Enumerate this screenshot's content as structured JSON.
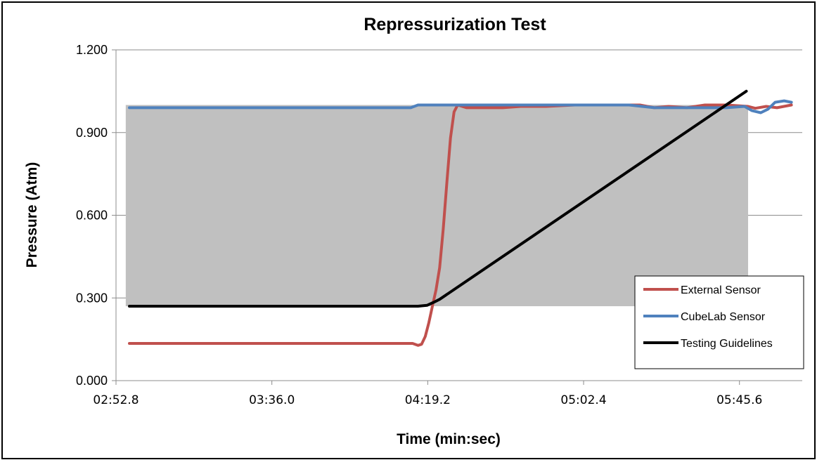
{
  "chart_data": {
    "type": "line",
    "title": "Repressurization Test",
    "xlabel": "Time (min:sec)",
    "ylabel": "Pressure (Atm)",
    "x_unit": "seconds",
    "xlim": [
      172.8,
      363
    ],
    "ylim": [
      0,
      1.2
    ],
    "x_ticks": [
      {
        "value": 172.8,
        "label": "02:52.8"
      },
      {
        "value": 216.0,
        "label": "03:36.0"
      },
      {
        "value": 259.2,
        "label": "04:19.2"
      },
      {
        "value": 302.4,
        "label": "05:02.4"
      },
      {
        "value": 345.6,
        "label": "05:45.6"
      }
    ],
    "y_ticks": [
      {
        "value": 0,
        "label": "0.000"
      },
      {
        "value": 0.3,
        "label": "0.300"
      },
      {
        "value": 0.6,
        "label": "0.600"
      },
      {
        "value": 0.9,
        "label": "0.900"
      },
      {
        "value": 1.2,
        "label": "1.200"
      }
    ],
    "grid": true,
    "legend_position": "bottom-right",
    "shaded_region": {
      "color": "#c0c0c0",
      "x": [
        175.5,
        348.0
      ],
      "y_top": 1.0,
      "y_bottom": 0.27,
      "notch": {
        "x": [
          261.7,
          348.0
        ],
        "y_top_left": 1.0,
        "drop_to": 1.0
      }
    },
    "series": [
      {
        "name": "External Sensor",
        "color": "#c0504d",
        "points": [
          [
            176.5,
            0.135
          ],
          [
            220,
            0.135
          ],
          [
            245,
            0.135
          ],
          [
            255,
            0.135
          ],
          [
            256.5,
            0.128
          ],
          [
            257.5,
            0.132
          ],
          [
            258.5,
            0.16
          ],
          [
            259.5,
            0.21
          ],
          [
            260.5,
            0.27
          ],
          [
            261.5,
            0.33
          ],
          [
            262.5,
            0.41
          ],
          [
            263.5,
            0.55
          ],
          [
            264.5,
            0.72
          ],
          [
            265.5,
            0.88
          ],
          [
            266.5,
            0.975
          ],
          [
            267.5,
            1.0
          ],
          [
            270,
            0.99
          ],
          [
            275,
            0.99
          ],
          [
            280,
            0.99
          ],
          [
            285,
            0.995
          ],
          [
            292,
            0.995
          ],
          [
            300,
            1.0
          ],
          [
            310,
            1.0
          ],
          [
            318,
            1.0
          ],
          [
            322,
            0.99
          ],
          [
            326,
            0.995
          ],
          [
            331,
            0.99
          ],
          [
            336,
            1.0
          ],
          [
            342,
            1.0
          ],
          [
            348,
            0.995
          ],
          [
            350,
            0.988
          ],
          [
            353,
            0.995
          ],
          [
            356,
            0.99
          ],
          [
            360,
            1.0
          ]
        ]
      },
      {
        "name": "CubeLab Sensor",
        "color": "#4f81bd",
        "points": [
          [
            176.5,
            0.99
          ],
          [
            200,
            0.99
          ],
          [
            230,
            0.99
          ],
          [
            254.5,
            0.99
          ],
          [
            256.5,
            1.0
          ],
          [
            265,
            1.0
          ],
          [
            270,
            1.0
          ],
          [
            285,
            1.0
          ],
          [
            300,
            1.0
          ],
          [
            315,
            1.0
          ],
          [
            322,
            0.99
          ],
          [
            335,
            0.99
          ],
          [
            342,
            0.99
          ],
          [
            347,
            0.995
          ],
          [
            349,
            0.98
          ],
          [
            351.5,
            0.972
          ],
          [
            353.5,
            0.985
          ],
          [
            355.5,
            1.01
          ],
          [
            358,
            1.015
          ],
          [
            360,
            1.01
          ]
        ]
      },
      {
        "name": "Testing Guidelines",
        "color": "#000000",
        "points": [
          [
            176.5,
            0.27
          ],
          [
            222,
            0.27
          ],
          [
            256.5,
            0.27
          ],
          [
            259,
            0.273
          ],
          [
            261,
            0.285
          ],
          [
            262.5,
            0.295
          ],
          [
            347.5,
            1.05
          ]
        ]
      }
    ]
  }
}
